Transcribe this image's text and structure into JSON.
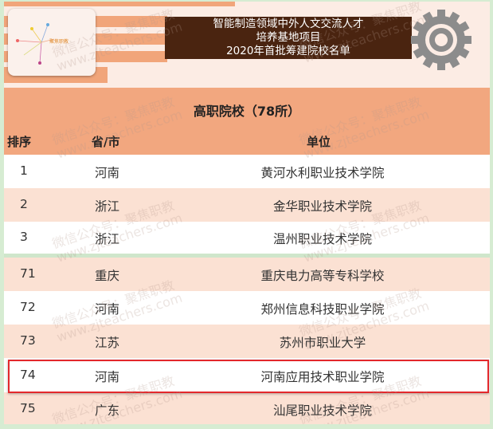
{
  "banner": {
    "logo_text": "聚焦职教",
    "title_lines": [
      "智能制造领域中外人文交流人才",
      "培养基地项目",
      "2020年首批筹建院校名单"
    ]
  },
  "section": {
    "title": "高职院校（78所）",
    "headers": {
      "rank": "排序",
      "province": "省/市",
      "unit": "单位"
    }
  },
  "rows": [
    {
      "rank": "1",
      "province": "河南",
      "unit": "黄河水利职业技术学院"
    },
    {
      "rank": "2",
      "province": "浙江",
      "unit": "金华职业技术学院"
    },
    {
      "rank": "3",
      "province": "浙江",
      "unit": "温州职业技术学院"
    },
    {
      "rank": "71",
      "province": "重庆",
      "unit": "重庆电力高等专科学校"
    },
    {
      "rank": "72",
      "province": "河南",
      "unit": "郑州信息科技职业学院"
    },
    {
      "rank": "73",
      "province": "江苏",
      "unit": "苏州市职业大学"
    },
    {
      "rank": "74",
      "province": "河南",
      "unit": "河南应用技术职业学院",
      "highlighted": true
    },
    {
      "rank": "75",
      "province": "广东",
      "unit": "汕尾职业技术学院"
    }
  ],
  "watermark": {
    "line1": "微信公众号：聚焦职教",
    "line2": "www.zjteachers.com"
  },
  "colors": {
    "header_bg": "#f2a77f",
    "row_alt": "#fbe1d3",
    "title_bg": "#4a2410",
    "highlight": "#e3282c"
  }
}
